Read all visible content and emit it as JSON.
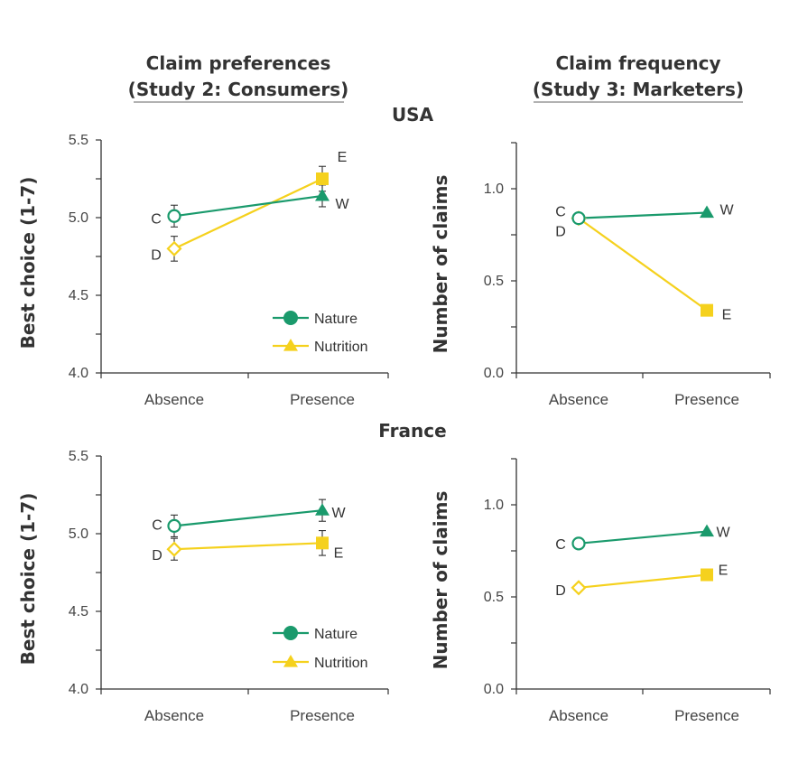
{
  "column_titles": [
    {
      "line1": "Claim preferences",
      "line2": "(Study 2: Consumers)"
    },
    {
      "line1": "Claim frequency",
      "line2": "(Study 3: Marketers)"
    }
  ],
  "section_titles": [
    "USA",
    "France"
  ],
  "legend": {
    "nature": {
      "label": "Nature",
      "color": "#1a9a6c"
    },
    "nutrition": {
      "label": "Nutrition",
      "color": "#f5d11d"
    }
  },
  "chart_data": [
    {
      "type": "line",
      "section": "USA",
      "study": "Study 2: Consumers",
      "ylabel": "Best choice (1-7)",
      "ylim": [
        4.0,
        5.5
      ],
      "yticks": [
        "4.0",
        "4.5",
        "5.0",
        "5.5"
      ],
      "categories": [
        "Absence",
        "Presence"
      ],
      "legend": true,
      "series": [
        {
          "name": "Nature",
          "values": [
            5.01,
            5.14
          ],
          "errors": [
            0.07,
            0.07
          ],
          "labels": [
            "C",
            "W"
          ],
          "markers": [
            "circle-open",
            "triangle"
          ]
        },
        {
          "name": "Nutrition",
          "values": [
            4.8,
            5.25
          ],
          "errors": [
            0.08,
            0.08
          ],
          "labels": [
            "D",
            "E"
          ],
          "markers": [
            "diamond-open",
            "square"
          ]
        }
      ]
    },
    {
      "type": "line",
      "section": "USA",
      "study": "Study 3: Marketers",
      "ylabel": "Number of claims",
      "ylim": [
        0.0,
        1.25
      ],
      "yticks": [
        "0.0",
        "0.5",
        "1.0"
      ],
      "categories": [
        "Absence",
        "Presence"
      ],
      "legend": false,
      "series": [
        {
          "name": "Nature",
          "values": [
            0.84,
            0.87
          ],
          "labels": [
            "D",
            "W"
          ],
          "markers": [
            "circle-open",
            "triangle"
          ]
        },
        {
          "name": "Nutrition",
          "values": [
            0.84,
            0.34
          ],
          "labels": [
            "C",
            "E"
          ],
          "markers": [
            "diamond-open",
            "square"
          ]
        }
      ]
    },
    {
      "type": "line",
      "section": "France",
      "study": "Study 2: Consumers",
      "ylabel": "Best choice (1-7)",
      "ylim": [
        4.0,
        5.5
      ],
      "yticks": [
        "4.0",
        "4.5",
        "5.0",
        "5.5"
      ],
      "categories": [
        "Absence",
        "Presence"
      ],
      "legend": true,
      "series": [
        {
          "name": "Nature",
          "values": [
            5.05,
            5.15
          ],
          "errors": [
            0.07,
            0.07
          ],
          "labels": [
            "C",
            "W"
          ],
          "markers": [
            "circle-open",
            "triangle"
          ]
        },
        {
          "name": "Nutrition",
          "values": [
            4.9,
            4.94
          ],
          "errors": [
            0.07,
            0.08
          ],
          "labels": [
            "D",
            "E"
          ],
          "markers": [
            "diamond-open",
            "square"
          ]
        }
      ]
    },
    {
      "type": "line",
      "section": "France",
      "study": "Study 3: Marketers",
      "ylabel": "Number of claims",
      "ylim": [
        0.0,
        1.25
      ],
      "yticks": [
        "0.0",
        "0.5",
        "1.0"
      ],
      "categories": [
        "Absence",
        "Presence"
      ],
      "legend": false,
      "series": [
        {
          "name": "Nature",
          "values": [
            0.79,
            0.855
          ],
          "labels": [
            "C",
            "W"
          ],
          "markers": [
            "circle-open",
            "triangle"
          ]
        },
        {
          "name": "Nutrition",
          "values": [
            0.55,
            0.62
          ],
          "labels": [
            "D",
            "E"
          ],
          "markers": [
            "diamond-open",
            "square"
          ]
        }
      ]
    }
  ]
}
